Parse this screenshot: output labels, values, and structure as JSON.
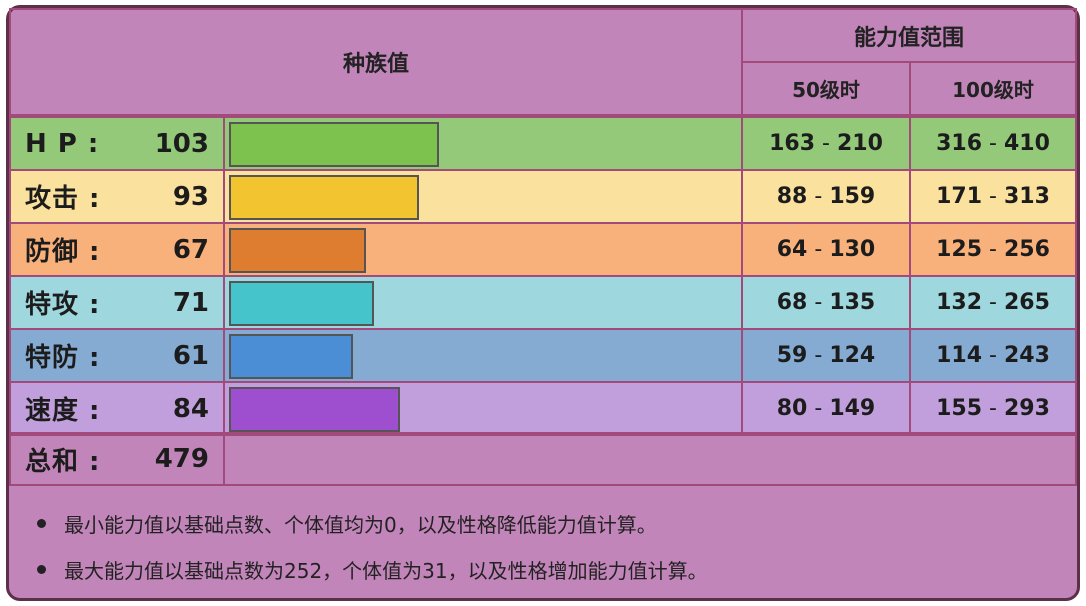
{
  "header": {
    "base_stats": "种族值",
    "stat_range": "能力值范围",
    "lv50": "50级时",
    "lv100": "100级时"
  },
  "rows": [
    {
      "label": "H P :",
      "value": "103",
      "bar_fraction": 0.404,
      "bar_color": "#7dc24e",
      "bg": "#94c97a",
      "min50": "163",
      "max50": "210",
      "min100": "316",
      "max100": "410"
    },
    {
      "label": "攻击 :",
      "value": "93",
      "bar_fraction": 0.365,
      "bar_color": "#f2c42f",
      "bg": "#fae19e",
      "min50": "88",
      "max50": "159",
      "min100": "171",
      "max100": "313"
    },
    {
      "label": "防御 :",
      "value": "67",
      "bar_fraction": 0.263,
      "bar_color": "#de7c30",
      "bg": "#f9b17c",
      "min50": "64",
      "max50": "130",
      "min100": "125",
      "max100": "256"
    },
    {
      "label": "特攻 :",
      "value": "71",
      "bar_fraction": 0.278,
      "bar_color": "#45c4cc",
      "bg": "#9ed7dd",
      "min50": "68",
      "max50": "135",
      "min100": "132",
      "max100": "265"
    },
    {
      "label": "特防 :",
      "value": "61",
      "bar_fraction": 0.239,
      "bar_color": "#4b8ed6",
      "bg": "#86abd3",
      "min50": "59",
      "max50": "124",
      "min100": "114",
      "max100": "243"
    },
    {
      "label": "速度 :",
      "value": "84",
      "bar_fraction": 0.329,
      "bar_color": "#9e4fd0",
      "bg": "#c09fdc",
      "min50": "80",
      "max50": "149",
      "min100": "155",
      "max100": "293"
    }
  ],
  "total": {
    "label": "总和 :",
    "value": "479"
  },
  "range_separator": " - ",
  "notes": [
    "最小能力值以基础点数、个体值均为0，以及性格降低能力值计算。",
    "最大能力值以基础点数为252，个体值为31，以及性格增加能力值计算。"
  ],
  "colors": {
    "frame_bg": "#c285ba",
    "border": "#a34a7d",
    "outer_border": "#5e2f49"
  }
}
